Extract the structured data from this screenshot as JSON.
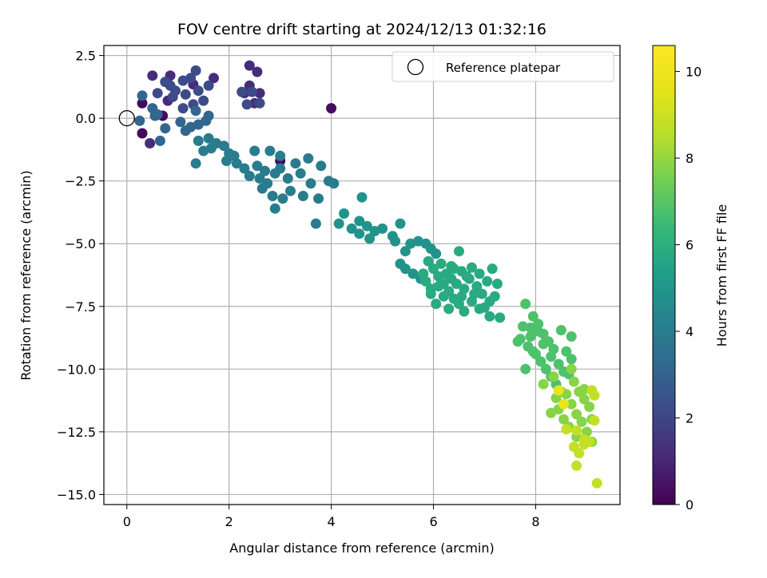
{
  "chart_data": {
    "type": "scatter",
    "title": "FOV centre drift starting at 2024/12/13 01:32:16",
    "xlabel": "Angular distance from reference (arcmin)",
    "ylabel": "Rotation from reference (arcmin)",
    "xlim": [
      -0.45,
      9.65
    ],
    "ylim": [
      -15.4,
      2.9
    ],
    "xticks": [
      0,
      2,
      4,
      6,
      8
    ],
    "yticks": [
      2.5,
      0.0,
      -2.5,
      -5.0,
      -7.5,
      -10.0,
      -12.5,
      -15.0
    ],
    "xtick_labels": [
      "0",
      "2",
      "4",
      "6",
      "8"
    ],
    "ytick_labels": [
      "2.5",
      "0.0",
      "−2.5",
      "−5.0",
      "−7.5",
      "−10.0",
      "−12.5",
      "−15.0"
    ],
    "grid": true,
    "colormap": "viridis",
    "colorbar": {
      "label": "Hours from first FF file",
      "range": [
        0,
        10.6
      ],
      "ticks": [
        0,
        2,
        4,
        6,
        8,
        10
      ],
      "tick_labels": [
        "0",
        "2",
        "4",
        "6",
        "8",
        "10"
      ]
    },
    "legend": {
      "placement": "top-right",
      "entries": [
        "Reference platepar"
      ]
    },
    "reference_point": {
      "x": 0,
      "y": 0
    },
    "point_groups": [
      {
        "hours": 0.3,
        "points": [
          [
            3.0,
            -1.7
          ],
          [
            4.0,
            0.4
          ],
          [
            0.3,
            -0.6
          ],
          [
            0.7,
            0.1
          ],
          [
            0.3,
            0.6
          ]
        ]
      },
      {
        "hours": 1.2,
        "points": [
          [
            1.7,
            1.6
          ],
          [
            0.85,
            1.7
          ],
          [
            0.5,
            1.7
          ],
          [
            0.45,
            -1.0
          ],
          [
            1.3,
            1.35
          ],
          [
            0.8,
            0.7
          ],
          [
            2.4,
            2.1
          ],
          [
            2.55,
            1.85
          ],
          [
            2.4,
            1.3
          ],
          [
            2.3,
            1.0
          ],
          [
            2.5,
            0.6
          ],
          [
            2.6,
            1.0
          ]
        ]
      },
      {
        "hours": 2.2,
        "points": [
          [
            1.35,
            1.9
          ],
          [
            1.25,
            1.6
          ],
          [
            1.1,
            1.5
          ],
          [
            1.6,
            1.3
          ],
          [
            1.4,
            1.1
          ],
          [
            1.15,
            0.95
          ],
          [
            0.95,
            1.1
          ],
          [
            0.75,
            1.45
          ],
          [
            0.85,
            1.3
          ],
          [
            0.6,
            1.0
          ],
          [
            0.9,
            0.85
          ],
          [
            1.5,
            0.7
          ],
          [
            2.35,
            0.55
          ],
          [
            2.6,
            0.6
          ],
          [
            2.25,
            1.05
          ],
          [
            2.45,
            1.05
          ],
          [
            1.3,
            0.55
          ],
          [
            1.1,
            0.4
          ]
        ]
      },
      {
        "hours": 3.1,
        "points": [
          [
            0.3,
            0.9
          ],
          [
            0.5,
            0.4
          ],
          [
            0.6,
            0.15
          ],
          [
            0.75,
            -0.4
          ],
          [
            0.65,
            -0.9
          ],
          [
            1.05,
            -0.15
          ],
          [
            1.25,
            -0.35
          ],
          [
            1.15,
            -0.5
          ],
          [
            1.4,
            -0.25
          ],
          [
            1.55,
            -0.1
          ],
          [
            1.35,
            0.3
          ],
          [
            1.6,
            0.1
          ],
          [
            0.25,
            -0.1
          ],
          [
            0.55,
            0.1
          ]
        ]
      },
      {
        "hours": 4.0,
        "points": [
          [
            1.4,
            -0.9
          ],
          [
            1.6,
            -0.8
          ],
          [
            1.75,
            -1.0
          ],
          [
            1.65,
            -1.2
          ],
          [
            1.5,
            -1.3
          ],
          [
            1.35,
            -1.8
          ],
          [
            1.9,
            -1.1
          ],
          [
            2.0,
            -1.4
          ],
          [
            2.1,
            -1.5
          ],
          [
            2.15,
            -1.8
          ],
          [
            1.95,
            -1.7
          ],
          [
            2.3,
            -2.0
          ],
          [
            2.5,
            -1.3
          ],
          [
            2.55,
            -1.9
          ],
          [
            2.7,
            -2.1
          ],
          [
            2.8,
            -1.3
          ],
          [
            2.6,
            -2.4
          ],
          [
            2.75,
            -2.6
          ],
          [
            2.85,
            -3.1
          ],
          [
            2.9,
            -3.6
          ],
          [
            3.0,
            -2.0
          ],
          [
            3.15,
            -2.4
          ],
          [
            3.2,
            -2.9
          ],
          [
            3.05,
            -3.2
          ],
          [
            3.4,
            -2.2
          ],
          [
            3.55,
            -1.6
          ],
          [
            3.6,
            -2.6
          ],
          [
            3.45,
            -3.1
          ],
          [
            3.8,
            -1.9
          ],
          [
            3.95,
            -2.5
          ],
          [
            4.05,
            -2.6
          ],
          [
            3.75,
            -3.2
          ],
          [
            3.7,
            -4.2
          ],
          [
            2.4,
            -2.3
          ],
          [
            2.65,
            -2.8
          ],
          [
            2.9,
            -2.2
          ],
          [
            3.3,
            -1.8
          ],
          [
            3.0,
            -1.5
          ]
        ]
      },
      {
        "hours": 4.9,
        "points": [
          [
            4.25,
            -3.8
          ],
          [
            4.15,
            -4.2
          ],
          [
            4.4,
            -4.4
          ],
          [
            4.55,
            -4.1
          ],
          [
            4.6,
            -3.15
          ],
          [
            4.7,
            -4.3
          ],
          [
            4.85,
            -4.5
          ],
          [
            4.55,
            -4.6
          ],
          [
            5.0,
            -4.4
          ],
          [
            5.2,
            -4.7
          ],
          [
            5.35,
            -4.2
          ],
          [
            5.25,
            -4.9
          ],
          [
            5.45,
            -5.3
          ],
          [
            5.55,
            -5.0
          ],
          [
            5.7,
            -4.9
          ],
          [
            5.85,
            -5.0
          ],
          [
            5.95,
            -5.2
          ],
          [
            6.05,
            -5.4
          ],
          [
            5.35,
            -5.8
          ],
          [
            5.45,
            -6.0
          ],
          [
            5.6,
            -6.2
          ],
          [
            5.75,
            -6.4
          ],
          [
            4.75,
            -4.8
          ]
        ]
      },
      {
        "hours": 5.8,
        "points": [
          [
            5.9,
            -5.7
          ],
          [
            6.0,
            -6.0
          ],
          [
            6.1,
            -6.3
          ],
          [
            6.2,
            -6.6
          ],
          [
            6.3,
            -6.9
          ],
          [
            6.4,
            -7.2
          ],
          [
            6.5,
            -7.4
          ],
          [
            6.6,
            -7.7
          ],
          [
            6.15,
            -5.8
          ],
          [
            6.35,
            -5.9
          ],
          [
            6.5,
            -5.3
          ],
          [
            6.55,
            -6.1
          ],
          [
            6.7,
            -6.4
          ],
          [
            6.85,
            -6.7
          ],
          [
            6.95,
            -7.0
          ],
          [
            7.05,
            -6.5
          ],
          [
            7.15,
            -6.0
          ],
          [
            7.25,
            -6.6
          ],
          [
            7.1,
            -7.3
          ],
          [
            6.9,
            -7.6
          ],
          [
            7.1,
            -7.9
          ],
          [
            7.3,
            -7.95
          ],
          [
            6.2,
            -7.1
          ],
          [
            6.05,
            -7.4
          ],
          [
            5.95,
            -6.8
          ],
          [
            5.85,
            -6.5
          ],
          [
            6.45,
            -6.6
          ],
          [
            6.75,
            -7.3
          ],
          [
            6.35,
            -6.4
          ],
          [
            5.8,
            -6.2
          ],
          [
            6.6,
            -6.8
          ],
          [
            7.0,
            -7.55
          ],
          [
            6.25,
            -6.2
          ],
          [
            6.4,
            -6.0
          ],
          [
            6.8,
            -7.0
          ],
          [
            5.95,
            -7.0
          ],
          [
            6.55,
            -7.1
          ],
          [
            7.2,
            -7.1
          ],
          [
            6.65,
            -6.3
          ],
          [
            6.1,
            -6.7
          ],
          [
            6.3,
            -7.6
          ],
          [
            6.75,
            -5.95
          ],
          [
            6.9,
            -6.2
          ]
        ]
      },
      {
        "hours": 6.8,
        "points": [
          [
            7.8,
            -7.4
          ],
          [
            7.95,
            -7.9
          ],
          [
            8.05,
            -8.2
          ],
          [
            8.15,
            -8.6
          ],
          [
            8.25,
            -8.9
          ],
          [
            8.35,
            -9.2
          ],
          [
            7.75,
            -8.3
          ],
          [
            7.9,
            -8.7
          ],
          [
            7.85,
            -9.1
          ],
          [
            7.7,
            -8.8
          ],
          [
            8.0,
            -9.4
          ],
          [
            8.1,
            -9.7
          ],
          [
            8.2,
            -10.0
          ],
          [
            8.3,
            -10.3
          ],
          [
            8.4,
            -10.6
          ],
          [
            8.5,
            -8.45
          ],
          [
            8.7,
            -8.7
          ],
          [
            8.6,
            -9.3
          ],
          [
            8.7,
            -9.6
          ],
          [
            7.8,
            -10.0
          ],
          [
            7.95,
            -9.3
          ],
          [
            8.45,
            -9.8
          ],
          [
            8.55,
            -10.1
          ],
          [
            8.15,
            -9.0
          ],
          [
            8.05,
            -8.5
          ],
          [
            8.3,
            -9.5
          ],
          [
            8.65,
            -10.2
          ],
          [
            7.65,
            -8.9
          ],
          [
            7.9,
            -8.35
          ]
        ]
      },
      {
        "hours": 7.8,
        "points": [
          [
            8.75,
            -10.5
          ],
          [
            8.85,
            -10.9
          ],
          [
            8.95,
            -11.2
          ],
          [
            9.05,
            -11.5
          ],
          [
            8.6,
            -11.0
          ],
          [
            8.7,
            -11.4
          ],
          [
            8.45,
            -11.6
          ],
          [
            8.55,
            -12.0
          ],
          [
            8.65,
            -12.3
          ],
          [
            8.8,
            -11.8
          ],
          [
            8.9,
            -12.1
          ],
          [
            9.0,
            -12.5
          ],
          [
            9.1,
            -12.0
          ],
          [
            8.3,
            -11.75
          ],
          [
            8.4,
            -11.15
          ],
          [
            8.15,
            -10.6
          ],
          [
            8.35,
            -10.3
          ],
          [
            8.8,
            -12.7
          ],
          [
            9.1,
            -12.9
          ],
          [
            8.5,
            -10.9
          ],
          [
            8.7,
            -10.0
          ],
          [
            8.95,
            -10.8
          ]
        ]
      },
      {
        "hours": 8.8,
        "points": [
          [
            8.75,
            -13.1
          ],
          [
            8.85,
            -13.35
          ],
          [
            8.95,
            -12.8
          ],
          [
            9.05,
            -12.9
          ],
          [
            9.2,
            -14.55
          ],
          [
            8.8,
            -13.85
          ],
          [
            9.15,
            -11.05
          ],
          [
            9.15,
            -12.05
          ],
          [
            8.95,
            -13.0
          ],
          [
            8.6,
            -12.4
          ],
          [
            9.1,
            -10.85
          ],
          [
            8.8,
            -12.45
          ]
        ]
      },
      {
        "hours": 9.8,
        "points": [
          [
            8.45,
            -10.85
          ],
          [
            8.55,
            -11.4
          ]
        ]
      }
    ]
  }
}
